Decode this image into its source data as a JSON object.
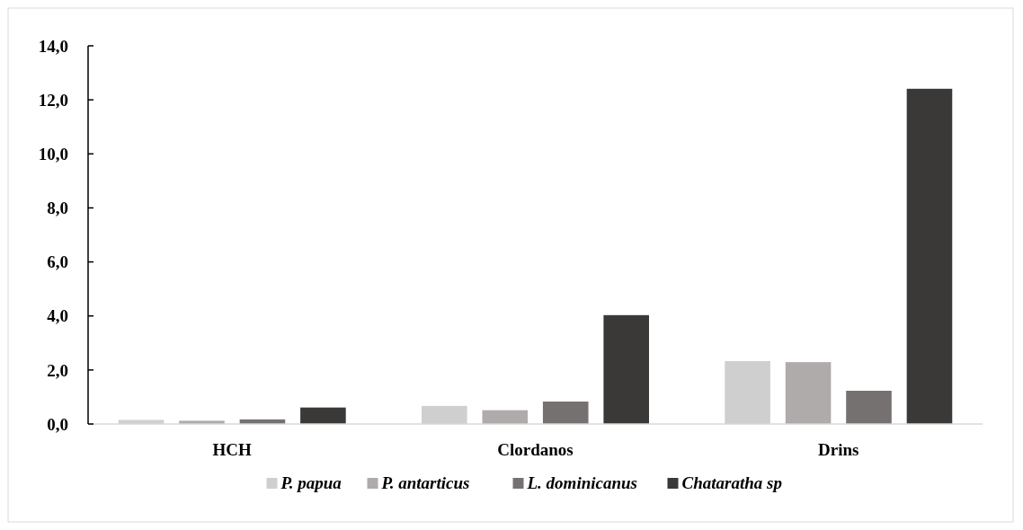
{
  "chart_data": {
    "type": "bar",
    "categories": [
      "HCH",
      "Clordanos",
      "Drins"
    ],
    "series": [
      {
        "name": "P. papua",
        "color": "#d0cfcf",
        "values": [
          0.15,
          0.67,
          2.33
        ]
      },
      {
        "name": "P. antarticus",
        "color": "#afabaa",
        "values": [
          0.12,
          0.51,
          2.29
        ]
      },
      {
        "name": "L. dominicanus",
        "color": "#767171",
        "values": [
          0.17,
          0.83,
          1.23
        ]
      },
      {
        "name": "Chataratha sp",
        "color": "#3a3938",
        "values": [
          0.61,
          4.03,
          12.41
        ]
      }
    ],
    "ylim": [
      0,
      14
    ],
    "yticks": [
      {
        "value": 0,
        "label": "0,0"
      },
      {
        "value": 2,
        "label": "2,0"
      },
      {
        "value": 4,
        "label": "4,0"
      },
      {
        "value": 6,
        "label": "6,0"
      },
      {
        "value": 8,
        "label": "8,0"
      },
      {
        "value": 10,
        "label": "10,0"
      },
      {
        "value": 12,
        "label": "12,0"
      },
      {
        "value": 14,
        "label": "14,0"
      }
    ],
    "grid": false,
    "legend": "bottom"
  }
}
